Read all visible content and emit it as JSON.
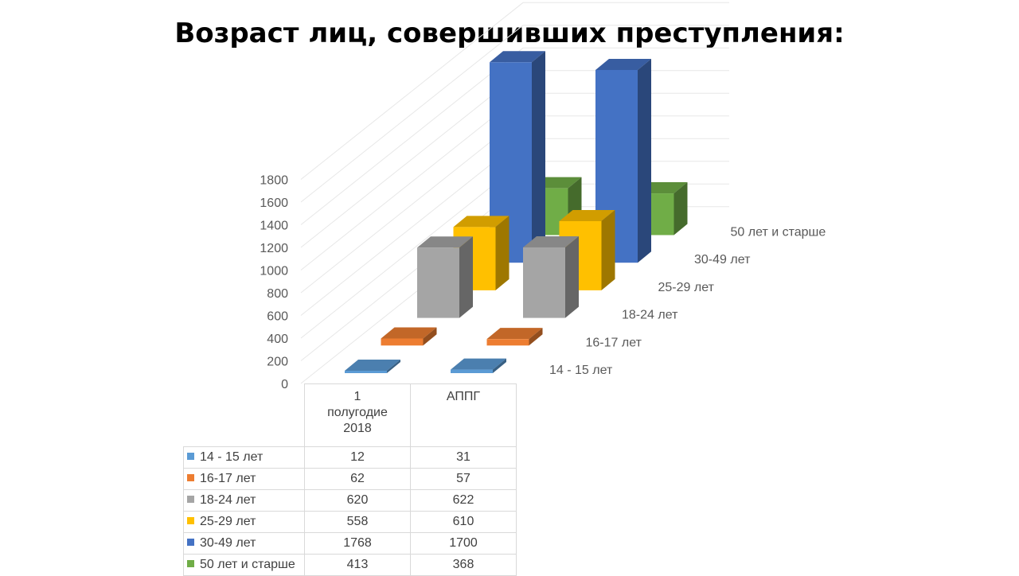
{
  "title": "Возраст лиц, совершивших преступления:",
  "chart_data": {
    "type": "bar",
    "subtype": "3d-column",
    "title": "Возраст лиц, совершивших преступления:",
    "categories": [
      "1 полугодие 2018",
      "АППГ"
    ],
    "ylim": [
      0,
      1800
    ],
    "yticks": [
      0,
      200,
      400,
      600,
      800,
      1000,
      1200,
      1400,
      1600,
      1800
    ],
    "grid": true,
    "legend": "data-table-below",
    "series": [
      {
        "name": "14 - 15 лет",
        "values": [
          12,
          31
        ],
        "color": "#5b9bd5"
      },
      {
        "name": "16-17 лет",
        "values": [
          62,
          57
        ],
        "color": "#ed7d31"
      },
      {
        "name": "18-24 лет",
        "values": [
          620,
          622
        ],
        "color": "#a5a5a5"
      },
      {
        "name": "25-29 лет",
        "values": [
          558,
          610
        ],
        "color": "#ffc000"
      },
      {
        "name": "30-49 лет",
        "values": [
          1768,
          1700
        ],
        "color": "#4472c4"
      },
      {
        "name": "50 лет и старше",
        "values": [
          413,
          368
        ],
        "color": "#70ad47"
      }
    ]
  },
  "table": {
    "headers": [
      "1\nполугодие\n2018",
      "АППГ"
    ]
  }
}
